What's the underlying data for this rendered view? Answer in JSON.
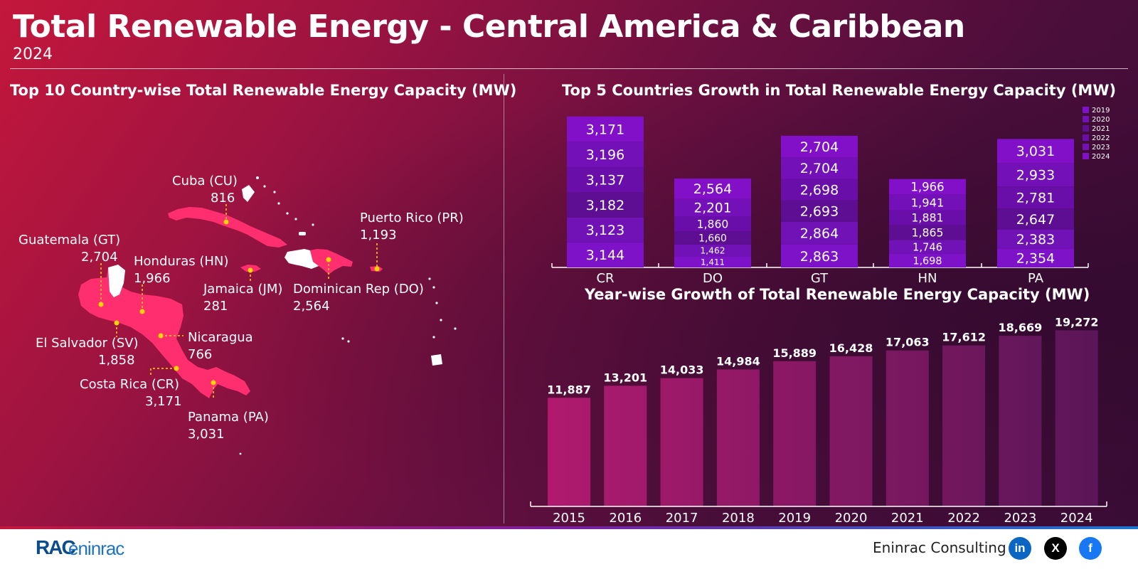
{
  "header": {
    "title": "Total Renewable Energy - Central America & Caribbean",
    "subtitle": "2024"
  },
  "map_section": {
    "title": "Top 10 Country-wise Total Renewable Energy Capacity (MW)",
    "labels": [
      {
        "name": "Cuba (CU)",
        "value": "816"
      },
      {
        "name": "Puerto Rico (PR)",
        "value": "1,193"
      },
      {
        "name": "Guatemala (GT)",
        "value": "2,704"
      },
      {
        "name": "Honduras (HN)",
        "value": "1,966"
      },
      {
        "name": "Jamaica (JM)",
        "value": "281"
      },
      {
        "name": "Dominican Rep (DO)",
        "value": "2,564"
      },
      {
        "name": "El Salvador (SV)",
        "value": "1,858"
      },
      {
        "name": "Nicaragua",
        "value": "766"
      },
      {
        "name": "Costa Rica (CR)",
        "value": "3,171"
      },
      {
        "name": "Panama (PA)",
        "value": "3,031"
      }
    ],
    "land_color": "#ff2e6e",
    "marker_color": "#ffd400"
  },
  "chart_data": [
    {
      "type": "bar",
      "stacked": true,
      "title": "Top 5 Countries Growth in Total Renewable Energy Capacity (MW)",
      "categories": [
        "CR",
        "DO",
        "GT",
        "HN",
        "PA"
      ],
      "series": [
        {
          "name": "2019",
          "values": [
            3144,
            1411,
            2863,
            1698,
            2354
          ],
          "color": "#7d12c9"
        },
        {
          "name": "2020",
          "values": [
            3123,
            1462,
            2864,
            1746,
            2383
          ],
          "color": "#7012b6"
        },
        {
          "name": "2021",
          "values": [
            3182,
            1660,
            2693,
            1865,
            2647
          ],
          "color": "#5d0e92"
        },
        {
          "name": "2022",
          "values": [
            3137,
            1860,
            2698,
            1881,
            2781
          ],
          "color": "#690ea8"
        },
        {
          "name": "2023",
          "values": [
            3196,
            2201,
            2704,
            1941,
            2933
          ],
          "color": "#7410b8"
        },
        {
          "name": "2024",
          "values": [
            3171,
            2564,
            2704,
            1966,
            3031
          ],
          "color": "#8110c8"
        }
      ],
      "legend_position": "top-right"
    },
    {
      "type": "bar",
      "title": "Year-wise Growth of Total Renewable Energy Capacity (MW)",
      "categories": [
        "2015",
        "2016",
        "2017",
        "2018",
        "2019",
        "2020",
        "2021",
        "2022",
        "2023",
        "2024"
      ],
      "values": [
        11887,
        13201,
        14033,
        14984,
        15889,
        16428,
        17063,
        17612,
        18669,
        19272
      ],
      "value_labels": [
        "11,887",
        "13,201",
        "14,033",
        "14,984",
        "15,889",
        "16,428",
        "17,063",
        "17,612",
        "18,669",
        "19,272"
      ],
      "color_start": "#b01a6e",
      "color_end": "#5a1658"
    }
  ],
  "footer": {
    "logo_mark": "RAC",
    "logo_text": "eninrac",
    "company": "Eninrac Consulting",
    "social": [
      {
        "icon": "linkedin-icon",
        "glyph": "in",
        "color": "#0a66c2"
      },
      {
        "icon": "x-icon",
        "glyph": "X",
        "color": "#000000"
      },
      {
        "icon": "facebook-icon",
        "glyph": "f",
        "color": "#1877f2"
      }
    ]
  }
}
